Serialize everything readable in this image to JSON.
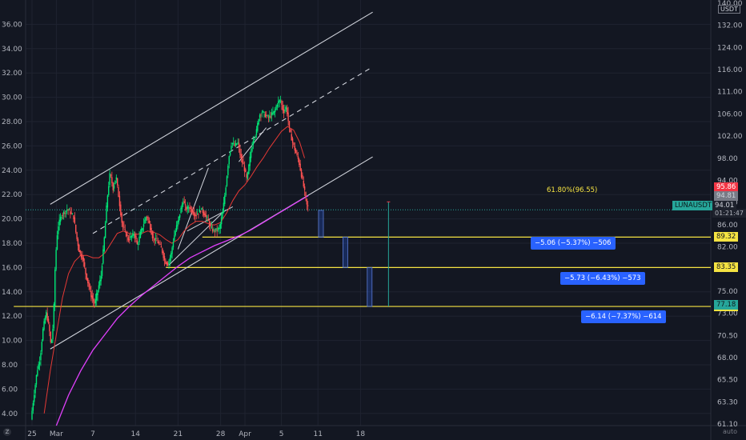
{
  "chart_data": {
    "type": "line",
    "symbol_label": "LUNAUSDT",
    "quote_currency": "USDT",
    "current_price": "94.01",
    "countdown": "01:21:47",
    "left_axis": {
      "ticks": [
        "4.00",
        "6.00",
        "8.00",
        "10.00",
        "12.00",
        "14.00",
        "16.00",
        "18.00",
        "20.00",
        "22.00",
        "24.00",
        "26.00",
        "28.00",
        "30.00",
        "32.00",
        "34.00",
        "36.00"
      ],
      "range": [
        3,
        38
      ]
    },
    "right_axis": {
      "ticks": [
        "61.10",
        "63.30",
        "65.50",
        "68.00",
        "70.50",
        "73.00",
        "75.00",
        "79.00",
        "82.00",
        "86.00",
        "89.00",
        "94.00",
        "98.00",
        "102.00",
        "106.00",
        "111.00",
        "116.00",
        "124.00",
        "132.00",
        "140.00"
      ]
    },
    "x_ticks": [
      "25",
      "Mar",
      "7",
      "14",
      "21",
      "28",
      "Apr",
      "5",
      "11",
      "18"
    ],
    "x_tick_days": [
      0,
      4,
      10,
      17,
      24,
      31,
      35,
      41,
      47,
      54
    ],
    "price_series": [
      {
        "d": 0,
        "p": 3.5
      },
      {
        "d": 0.5,
        "p": 5.5
      },
      {
        "d": 1,
        "p": 7.5
      },
      {
        "d": 1.5,
        "p": 8.5
      },
      {
        "d": 2,
        "p": 11
      },
      {
        "d": 2.5,
        "p": 12.3
      },
      {
        "d": 3,
        "p": 11
      },
      {
        "d": 3.3,
        "p": 9.5
      },
      {
        "d": 3.7,
        "p": 11.5
      },
      {
        "d": 4,
        "p": 16.5
      },
      {
        "d": 4.4,
        "p": 19.3
      },
      {
        "d": 5,
        "p": 20.3
      },
      {
        "d": 6,
        "p": 20.8
      },
      {
        "d": 7,
        "p": 20.2
      },
      {
        "d": 7.5,
        "p": 18.5
      },
      {
        "d": 8,
        "p": 17.2
      },
      {
        "d": 8.5,
        "p": 16.8
      },
      {
        "d": 9,
        "p": 15.5
      },
      {
        "d": 9.5,
        "p": 14.5
      },
      {
        "d": 10,
        "p": 13.5
      },
      {
        "d": 10.5,
        "p": 13.0
      },
      {
        "d": 11,
        "p": 14.2
      },
      {
        "d": 11.5,
        "p": 15.2
      },
      {
        "d": 12,
        "p": 18
      },
      {
        "d": 12.5,
        "p": 21.5
      },
      {
        "d": 13,
        "p": 23.8
      },
      {
        "d": 13.5,
        "p": 22.5
      },
      {
        "d": 14,
        "p": 23.5
      },
      {
        "d": 14.5,
        "p": 21.5
      },
      {
        "d": 15,
        "p": 19.5
      },
      {
        "d": 16,
        "p": 18.3
      },
      {
        "d": 17,
        "p": 18.8
      },
      {
        "d": 17.5,
        "p": 17.8
      },
      {
        "d": 18,
        "p": 18.8
      },
      {
        "d": 19,
        "p": 20.3
      },
      {
        "d": 19.5,
        "p": 19.5
      },
      {
        "d": 20,
        "p": 18.5
      },
      {
        "d": 21,
        "p": 18
      },
      {
        "d": 21.5,
        "p": 17.5
      },
      {
        "d": 22,
        "p": 16.5
      },
      {
        "d": 22.5,
        "p": 16.3
      },
      {
        "d": 23,
        "p": 17
      },
      {
        "d": 23.5,
        "p": 18.5
      },
      {
        "d": 24,
        "p": 19.5
      },
      {
        "d": 24.5,
        "p": 20.5
      },
      {
        "d": 25,
        "p": 21.5
      },
      {
        "d": 25.5,
        "p": 20.8
      },
      {
        "d": 26,
        "p": 21
      },
      {
        "d": 27,
        "p": 20.3
      },
      {
        "d": 27.5,
        "p": 20.5
      },
      {
        "d": 28,
        "p": 20.8
      },
      {
        "d": 29,
        "p": 20
      },
      {
        "d": 29.5,
        "p": 19.3
      },
      {
        "d": 30,
        "p": 19
      },
      {
        "d": 31,
        "p": 19.2
      },
      {
        "d": 31.5,
        "p": 20.5
      },
      {
        "d": 32,
        "p": 22.5
      },
      {
        "d": 32.5,
        "p": 25
      },
      {
        "d": 33,
        "p": 26.3
      },
      {
        "d": 33.5,
        "p": 26
      },
      {
        "d": 34,
        "p": 26.3
      },
      {
        "d": 34.5,
        "p": 25
      },
      {
        "d": 35,
        "p": 24.3
      },
      {
        "d": 35.5,
        "p": 23.2
      },
      {
        "d": 36,
        "p": 25
      },
      {
        "d": 36.5,
        "p": 26.5
      },
      {
        "d": 37,
        "p": 27
      },
      {
        "d": 37.5,
        "p": 28.5
      },
      {
        "d": 38,
        "p": 28.8
      },
      {
        "d": 39,
        "p": 28.3
      },
      {
        "d": 40,
        "p": 28.8
      },
      {
        "d": 40.5,
        "p": 29.5
      },
      {
        "d": 41,
        "p": 29.8
      },
      {
        "d": 41.5,
        "p": 28.8
      },
      {
        "d": 42,
        "p": 29.2
      },
      {
        "d": 42.5,
        "p": 27.3
      },
      {
        "d": 43,
        "p": 26.3
      },
      {
        "d": 43.5,
        "p": 25.5
      },
      {
        "d": 44,
        "p": 24.8
      },
      {
        "d": 44.5,
        "p": 23.5
      },
      {
        "d": 45,
        "p": 22.2
      },
      {
        "d": 45.4,
        "p": 21.0
      }
    ],
    "ma_red": [
      {
        "d": 2,
        "p": 4
      },
      {
        "d": 3,
        "p": 7.5
      },
      {
        "d": 4,
        "p": 10.5
      },
      {
        "d": 5,
        "p": 13.5
      },
      {
        "d": 6,
        "p": 15.5
      },
      {
        "d": 7,
        "p": 16.5
      },
      {
        "d": 8,
        "p": 17
      },
      {
        "d": 9,
        "p": 17
      },
      {
        "d": 10,
        "p": 16.8
      },
      {
        "d": 11,
        "p": 16.8
      },
      {
        "d": 12,
        "p": 17.2
      },
      {
        "d": 13,
        "p": 18
      },
      {
        "d": 14,
        "p": 18.8
      },
      {
        "d": 15,
        "p": 19
      },
      {
        "d": 16,
        "p": 18.8
      },
      {
        "d": 17,
        "p": 18.7
      },
      {
        "d": 18,
        "p": 18.8
      },
      {
        "d": 19,
        "p": 19
      },
      {
        "d": 20,
        "p": 18.9
      },
      {
        "d": 21,
        "p": 18.7
      },
      {
        "d": 22,
        "p": 18.3
      },
      {
        "d": 23,
        "p": 18
      },
      {
        "d": 24,
        "p": 18.3
      },
      {
        "d": 25,
        "p": 19
      },
      {
        "d": 26,
        "p": 19.5
      },
      {
        "d": 27,
        "p": 19.8
      },
      {
        "d": 28,
        "p": 19.8
      },
      {
        "d": 29,
        "p": 19.6
      },
      {
        "d": 30,
        "p": 19.5
      },
      {
        "d": 31,
        "p": 19.7
      },
      {
        "d": 32,
        "p": 20.5
      },
      {
        "d": 33,
        "p": 21.5
      },
      {
        "d": 34,
        "p": 22.3
      },
      {
        "d": 35,
        "p": 22.8
      },
      {
        "d": 36,
        "p": 23.5
      },
      {
        "d": 37,
        "p": 24.3
      },
      {
        "d": 38,
        "p": 25
      },
      {
        "d": 39,
        "p": 25.8
      },
      {
        "d": 40,
        "p": 26.5
      },
      {
        "d": 41,
        "p": 27.2
      },
      {
        "d": 42,
        "p": 27.6
      },
      {
        "d": 43,
        "p": 27.3
      },
      {
        "d": 44,
        "p": 26.3
      },
      {
        "d": 44.8,
        "p": 25
      }
    ],
    "ma_magenta": [
      {
        "d": 4,
        "p": 3
      },
      {
        "d": 6,
        "p": 5.5
      },
      {
        "d": 8,
        "p": 7.5
      },
      {
        "d": 10,
        "p": 9.2
      },
      {
        "d": 12,
        "p": 10.5
      },
      {
        "d": 14,
        "p": 11.8
      },
      {
        "d": 16,
        "p": 12.8
      },
      {
        "d": 18,
        "p": 13.7
      },
      {
        "d": 20,
        "p": 14.5
      },
      {
        "d": 22,
        "p": 15.3
      },
      {
        "d": 24,
        "p": 16.1
      },
      {
        "d": 26,
        "p": 16.8
      },
      {
        "d": 28,
        "p": 17.3
      },
      {
        "d": 30,
        "p": 17.8
      },
      {
        "d": 32,
        "p": 18.2
      },
      {
        "d": 34,
        "p": 18.6
      },
      {
        "d": 36,
        "p": 19.1
      },
      {
        "d": 38,
        "p": 19.7
      },
      {
        "d": 40,
        "p": 20.3
      },
      {
        "d": 42,
        "p": 20.9
      },
      {
        "d": 44,
        "p": 21.5
      },
      {
        "d": 45.4,
        "p": 21.9
      }
    ],
    "channel_upper": [
      {
        "d": 3,
        "p": 21.2
      },
      {
        "d": 56,
        "p": 37.0
      }
    ],
    "channel_lower": [
      {
        "d": 3,
        "p": 9.3
      },
      {
        "d": 56,
        "p": 25.1
      }
    ],
    "channel_mid": [
      {
        "d": 10,
        "p": 18.8
      },
      {
        "d": 56,
        "p": 32.5
      }
    ],
    "fib_label": "61.80%(96.55)",
    "horizontal_levels": [
      {
        "price": 18.5,
        "label": "89.32",
        "from_day": 28
      },
      {
        "price": 16.0,
        "label": "83.35",
        "from_day": 22
      },
      {
        "price": 12.8,
        "label": "77.18",
        "from_day": -3
      }
    ],
    "measure_labels": [
      "−5.06 (−5.37%) −506",
      "−5.73 (−6.43%) −573",
      "−6.14 (−7.37%) −614"
    ],
    "right_axis_tags": [
      {
        "text": "95.86",
        "color": "#f23645",
        "fg": "#ffffff"
      },
      {
        "text": "94.81",
        "color": "#787b86",
        "fg": "#d1d4dc"
      },
      {
        "text": "77.18",
        "color": "#26a69a",
        "fg": "#0d1b1e"
      }
    ],
    "colors": {
      "background": "#131722",
      "up": "#00e676",
      "down": "#ff5252",
      "ma_red": "#e53935",
      "ma_magenta": "#e040fb",
      "level": "#f5e342",
      "channel": "#d1d4dc",
      "accent": "#2962ff",
      "symbol_badge": "#26a69a"
    }
  },
  "footer": {
    "left_icon": "z-icon",
    "right_icon": "auto-label"
  },
  "ui_text": {
    "auto": "auto",
    "zoom": "Z"
  }
}
